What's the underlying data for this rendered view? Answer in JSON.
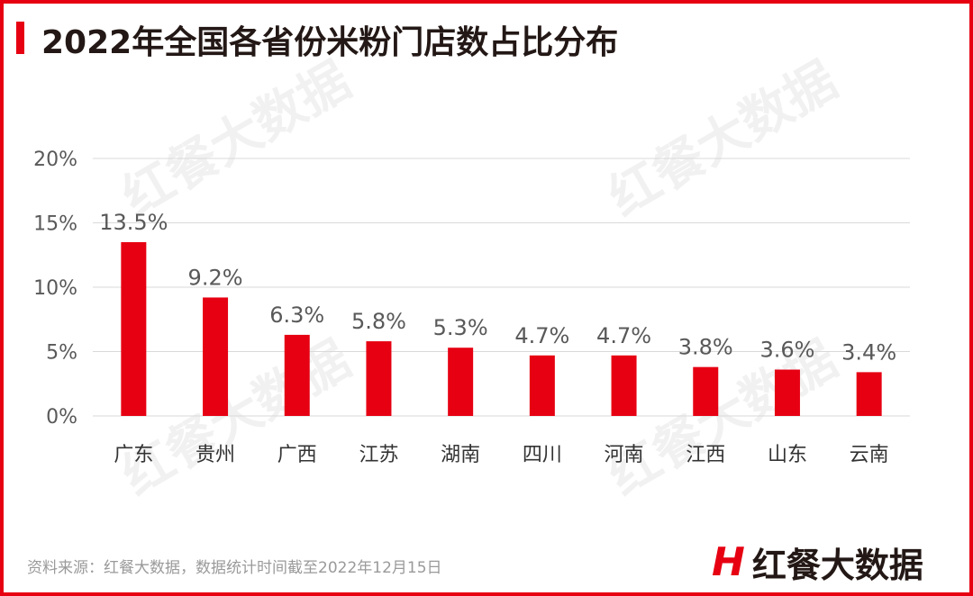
{
  "title": "2022年全国各省份米粉门店数占比分布",
  "watermark": "红餐大数据",
  "footer": "资料来源：红餐大数据，数据统计时间截至2022年12月15日",
  "logo": {
    "mark": "H",
    "text": "红餐大数据"
  },
  "colors": {
    "accent": "#e60012",
    "bar": "#e60012",
    "grid": "#d9d9d9",
    "label": "#595959"
  },
  "chart_data": {
    "type": "bar",
    "categories": [
      "广东",
      "贵州",
      "广西",
      "江苏",
      "湖南",
      "四川",
      "河南",
      "江西",
      "山东",
      "云南"
    ],
    "values": [
      13.5,
      9.2,
      6.3,
      5.8,
      5.3,
      4.7,
      4.7,
      3.8,
      3.6,
      3.4
    ],
    "data_labels": [
      "13.5%",
      "9.2%",
      "6.3%",
      "5.8%",
      "5.3%",
      "4.7%",
      "4.7%",
      "3.8%",
      "3.6%",
      "3.4%"
    ],
    "ylim": [
      0,
      20
    ],
    "yticks": [
      "0%",
      "5%",
      "10%",
      "15%",
      "20%"
    ],
    "ytick_values": [
      0,
      5,
      10,
      15,
      20
    ],
    "grid": true,
    "legend": "none",
    "xlabel": "",
    "ylabel": ""
  }
}
